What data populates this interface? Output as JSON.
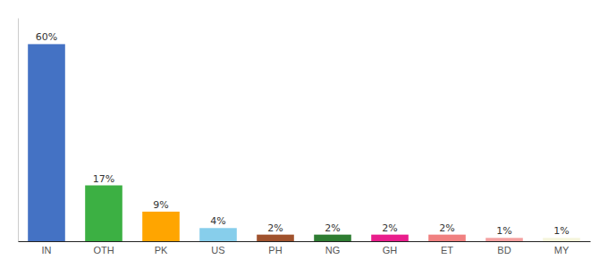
{
  "chart_data": {
    "type": "bar",
    "categories": [
      "IN",
      "OTH",
      "PK",
      "US",
      "PH",
      "NG",
      "GH",
      "ET",
      "BD",
      "MY"
    ],
    "values": [
      60,
      17,
      9,
      4,
      2,
      2,
      2,
      2,
      1,
      1
    ],
    "value_labels": [
      "60%",
      "17%",
      "9%",
      "4%",
      "2%",
      "2%",
      "2%",
      "2%",
      "1%",
      "1%"
    ],
    "colors": [
      "#4472C4",
      "#3CB043",
      "#FFA500",
      "#87CEEB",
      "#A0522D",
      "#2E7D32",
      "#E91E8C",
      "#F08080",
      "#F4A0A0",
      "#F5F5DC"
    ],
    "ylim": [
      0,
      68
    ],
    "data_labels": true,
    "tick_labels": "x",
    "grid": false
  }
}
